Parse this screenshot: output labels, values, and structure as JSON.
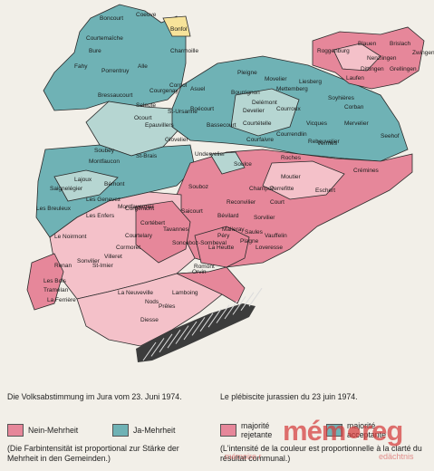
{
  "colors": {
    "nein": "#e6879a",
    "nein_light": "#f4c1c9",
    "ja": "#6fb2b5",
    "ja_dark": "#4a98a0",
    "ja_light": "#b6d6d2",
    "lake": "#3c3c3c",
    "background": "#f2efe8",
    "watermark": "#d43b3b"
  },
  "places": [
    {
      "name": "Boncourt"
    },
    {
      "name": "Bonfol"
    },
    {
      "name": "Coeuve"
    },
    {
      "name": "Bure"
    },
    {
      "name": "Courtemaîche"
    },
    {
      "name": "Fahy"
    },
    {
      "name": "Porrentruy"
    },
    {
      "name": "Alle"
    },
    {
      "name": "Charmoille"
    },
    {
      "name": "Courgenay"
    },
    {
      "name": "Cornol"
    },
    {
      "name": "Ocourt"
    },
    {
      "name": "Bressaucourt"
    },
    {
      "name": "Seleute"
    },
    {
      "name": "St-Ursanne"
    },
    {
      "name": "Asuel"
    },
    {
      "name": "Bourrignon"
    },
    {
      "name": "Pleigne"
    },
    {
      "name": "Movelier"
    },
    {
      "name": "Mettemberg"
    },
    {
      "name": "Liesberg"
    },
    {
      "name": "Roggenburg"
    },
    {
      "name": "Brislach"
    },
    {
      "name": "Blauen"
    },
    {
      "name": "Nenzlingen"
    },
    {
      "name": "Zwingen"
    },
    {
      "name": "Laufen"
    },
    {
      "name": "Dittingen"
    },
    {
      "name": "Grellingen"
    },
    {
      "name": "Delémont"
    },
    {
      "name": "Develier"
    },
    {
      "name": "Bassecourt"
    },
    {
      "name": "Boécourt"
    },
    {
      "name": "Glovelier"
    },
    {
      "name": "Courtételle"
    },
    {
      "name": "Courfaivre"
    },
    {
      "name": "Courroux"
    },
    {
      "name": "Courrendlin"
    },
    {
      "name": "Vicques"
    },
    {
      "name": "Vermes"
    },
    {
      "name": "Mervelier"
    },
    {
      "name": "Corban"
    },
    {
      "name": "Seehof"
    },
    {
      "name": "Rebeuvelier"
    },
    {
      "name": "Soyhières"
    },
    {
      "name": "Epauvillers"
    },
    {
      "name": "Soubey"
    },
    {
      "name": "St-Brais"
    },
    {
      "name": "Undervelier"
    },
    {
      "name": "Soulce"
    },
    {
      "name": "Roches"
    },
    {
      "name": "Moutier"
    },
    {
      "name": "Perrefitte"
    },
    {
      "name": "Eschert"
    },
    {
      "name": "Crémines"
    },
    {
      "name": "Souboz"
    },
    {
      "name": "Champoz"
    },
    {
      "name": "Saicourt"
    },
    {
      "name": "Court"
    },
    {
      "name": "Reconvilier"
    },
    {
      "name": "Bévilard"
    },
    {
      "name": "Malleray"
    },
    {
      "name": "Sorvilier"
    },
    {
      "name": "Saules"
    },
    {
      "name": "Loveresse"
    },
    {
      "name": "Tavannes"
    },
    {
      "name": "Sonceboz-Sombeval"
    },
    {
      "name": "La Heutte"
    },
    {
      "name": "Péry"
    },
    {
      "name": "Plagne"
    },
    {
      "name": "Vauffelin"
    },
    {
      "name": "Romont"
    },
    {
      "name": "Orvin"
    },
    {
      "name": "Lamboing"
    },
    {
      "name": "Prêles"
    },
    {
      "name": "Diesse"
    },
    {
      "name": "Nods"
    },
    {
      "name": "La Neuveville"
    },
    {
      "name": "Tramelan"
    },
    {
      "name": "Corgémont"
    },
    {
      "name": "Cortébert"
    },
    {
      "name": "Courtelary"
    },
    {
      "name": "Cormoret"
    },
    {
      "name": "Villeret"
    },
    {
      "name": "St-Imier"
    },
    {
      "name": "Sonvilier"
    },
    {
      "name": "Renan"
    },
    {
      "name": "La Ferrière"
    },
    {
      "name": "Les Bois"
    },
    {
      "name": "Le Noirmont"
    },
    {
      "name": "Les Breuleux"
    },
    {
      "name": "Saignelégier"
    },
    {
      "name": "Montfaucon"
    },
    {
      "name": "Lajoux"
    },
    {
      "name": "Les Genevez"
    },
    {
      "name": "Les Enfers"
    },
    {
      "name": "Bémont"
    },
    {
      "name": "Montfavergier"
    }
  ],
  "caption": {
    "de": "Die Volksabstimmung im Jura vom 23. Juni 1974.",
    "fr": "Le plébiscite jurassien du 23 juin 1974."
  },
  "legend": {
    "nein": "Nein-Mehrheit",
    "ja": "Ja-Mehrheit",
    "rejetante": "majorité rejetante",
    "acceptante": "majorité acceptante",
    "note_de": "(Die Farbintensität ist proportional zur Stärke der Mehrheit in den Gemeinden.)",
    "note_fr": "(L'intensité de la couleur est proportionnelle à la clarté du résultat communal.)"
  },
  "watermark": {
    "brand": "mém●reg",
    "sub_left": "mémoire r",
    "sub_right": "edächtnis"
  }
}
